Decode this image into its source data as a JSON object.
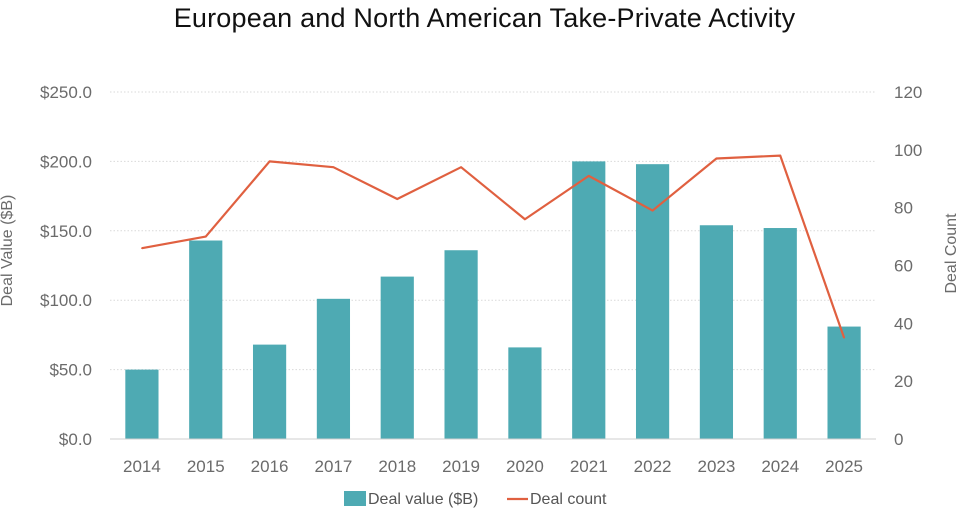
{
  "chart_data": {
    "type": "bar+line",
    "title": "European and North American Take-Private Activity",
    "categories": [
      "2014",
      "2015",
      "2016",
      "2017",
      "2018",
      "2019",
      "2020",
      "2021",
      "2022",
      "2023",
      "2024",
      "2025"
    ],
    "series": [
      {
        "name": "Deal value ($B)",
        "type": "bar",
        "axis": "left",
        "color": "#4eaab3",
        "values": [
          50,
          143,
          68,
          101,
          117,
          136,
          66,
          200,
          198,
          154,
          152,
          81
        ]
      },
      {
        "name": "Deal count",
        "type": "line",
        "axis": "right",
        "color": "#e06040",
        "values": [
          66,
          70,
          96,
          94,
          83,
          94,
          76,
          91,
          79,
          97,
          98,
          35
        ]
      }
    ],
    "ylabel": "Deal Value ($B)",
    "y2label": "Deal Count",
    "ylim": [
      0,
      250
    ],
    "y2lim": [
      0,
      120
    ],
    "yticks": [
      "$0.0",
      "$50.0",
      "$100.0",
      "$150.0",
      "$200.0",
      "$250.0"
    ],
    "y2ticks": [
      "0",
      "20",
      "40",
      "60",
      "80",
      "100",
      "120"
    ],
    "grid": true,
    "legend": "bottom-center"
  }
}
